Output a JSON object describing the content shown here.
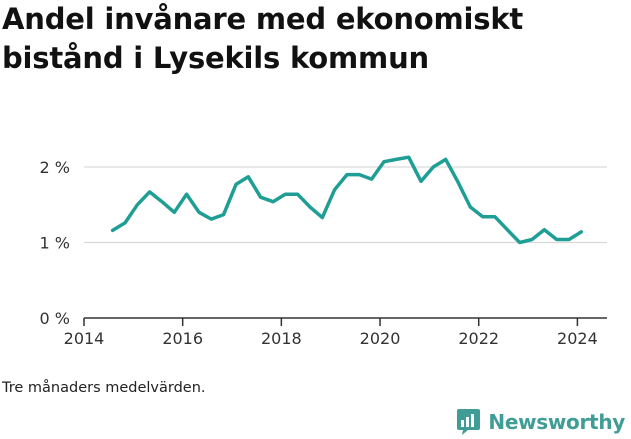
{
  "title": "Andel invånare med ekonomiskt bistånd i Lysekils kommun",
  "caption": "Tre månaders medelvärden.",
  "brand": {
    "name": "Newsworthy",
    "icon": "bar-chart-logo-icon"
  },
  "colors": {
    "line": "#1f9e95",
    "grid": "#d9d9d9",
    "axis": "#333333",
    "brand": "#3f9d96"
  },
  "chart_data": {
    "type": "line",
    "title": "Andel invånare med ekonomiskt bistånd i Lysekils kommun",
    "xlabel": "",
    "ylabel": "",
    "xlim": [
      2014,
      2024.6
    ],
    "ylim": [
      0,
      2
    ],
    "y_ticks": [
      0,
      1,
      2
    ],
    "y_tick_labels": [
      "0 %",
      "1 %",
      "2 %"
    ],
    "x_ticks": [
      2014,
      2016,
      2018,
      2020,
      2022,
      2024
    ],
    "x_tick_labels": [
      "2014",
      "2016",
      "2018",
      "2020",
      "2022",
      "2024"
    ],
    "grid": true,
    "series": [
      {
        "x": [
          2014.58,
          2014.83,
          2015.08,
          2015.33,
          2015.58,
          2015.83,
          2016.08,
          2016.33,
          2016.58,
          2016.83,
          2017.08,
          2017.33,
          2017.58,
          2017.83,
          2018.08,
          2018.33,
          2018.58,
          2018.83,
          2019.08,
          2019.33,
          2019.58,
          2019.83,
          2020.08,
          2020.33,
          2020.58,
          2020.83,
          2021.08,
          2021.33,
          2021.58,
          2021.83,
          2022.08,
          2022.33,
          2022.58,
          2022.83,
          2023.08,
          2023.33,
          2023.58,
          2023.83,
          2024.08
        ],
        "values": [
          1.16,
          1.26,
          1.5,
          1.67,
          1.54,
          1.4,
          1.64,
          1.4,
          1.31,
          1.37,
          1.77,
          1.87,
          1.6,
          1.54,
          1.64,
          1.64,
          1.47,
          1.33,
          1.7,
          1.9,
          1.9,
          1.84,
          2.07,
          2.1,
          2.13,
          1.81,
          2.0,
          2.1,
          1.8,
          1.47,
          1.34,
          1.34,
          1.17,
          1.0,
          1.04,
          1.17,
          1.04,
          1.04,
          1.14
        ]
      }
    ]
  }
}
